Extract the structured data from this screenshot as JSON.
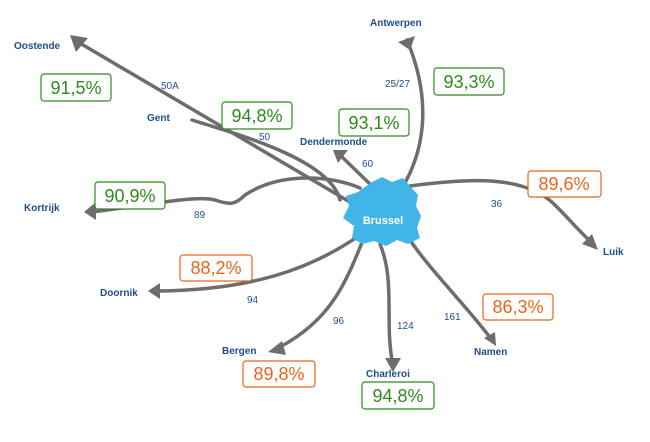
{
  "hub": {
    "name": "Brussel"
  },
  "colors": {
    "good": "#2e8b1e",
    "bad": "#e8661c",
    "route": "#6d6d6d",
    "hub": "#41b4e8",
    "label": "#1f4e8c"
  },
  "routes": [
    {
      "id": "oostende",
      "city": "Oostende",
      "line": "50A",
      "pct": "91,5%",
      "status": "good"
    },
    {
      "id": "gent",
      "city": "Gent",
      "line": "50",
      "pct": "94,8%",
      "status": "good"
    },
    {
      "id": "dendermonde",
      "city": "Dendermonde",
      "line": "60",
      "pct": "93,1%",
      "status": "good"
    },
    {
      "id": "antwerpen",
      "city": "Antwerpen",
      "line": "25/27",
      "pct": "93,3%",
      "status": "good"
    },
    {
      "id": "kortrijk",
      "city": "Kortrijk",
      "line": "89",
      "pct": "90,9%",
      "status": "good"
    },
    {
      "id": "luik",
      "city": "Luik",
      "line": "36",
      "pct": "89,6%",
      "status": "bad"
    },
    {
      "id": "doornik",
      "city": "Doornik",
      "line": "94",
      "pct": "88,2%",
      "status": "bad"
    },
    {
      "id": "bergen",
      "city": "Bergen",
      "line": "96",
      "pct": "89,8%",
      "status": "bad"
    },
    {
      "id": "charleroi",
      "city": "Charleroi",
      "line": "124",
      "pct": "94,8%",
      "status": "good"
    },
    {
      "id": "namen",
      "city": "Namen",
      "line": "161",
      "pct": "86,3%",
      "status": "bad"
    }
  ]
}
